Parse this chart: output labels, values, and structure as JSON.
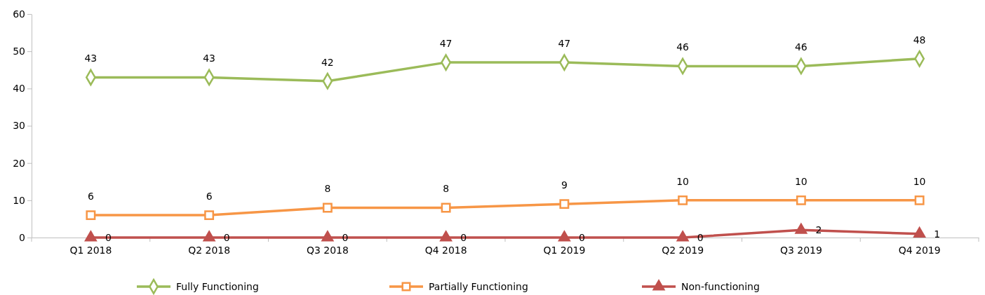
{
  "chart_data": {
    "type": "line",
    "categories": [
      "Q1 2018",
      "Q2 2018",
      "Q3 2018",
      "Q4 2018",
      "Q1 2019",
      "Q2 2019",
      "Q3 2019",
      "Q4 2019"
    ],
    "series": [
      {
        "name": "Fully Functioning",
        "color": "#9bbb59",
        "marker": "diamond",
        "values": [
          43,
          43,
          42,
          47,
          47,
          46,
          46,
          48
        ]
      },
      {
        "name": "Partially Functioning",
        "color": "#f79646",
        "marker": "square",
        "values": [
          6,
          6,
          8,
          8,
          9,
          10,
          10,
          10
        ]
      },
      {
        "name": "Non-functioning",
        "color": "#c0504d",
        "marker": "triangle",
        "values": [
          0,
          0,
          0,
          0,
          0,
          0,
          2,
          1
        ]
      }
    ],
    "ylim": [
      0,
      60
    ],
    "yticks": [
      0,
      10,
      20,
      30,
      40,
      50,
      60
    ],
    "grid": false,
    "legend": "bottom",
    "data_labels": true
  }
}
